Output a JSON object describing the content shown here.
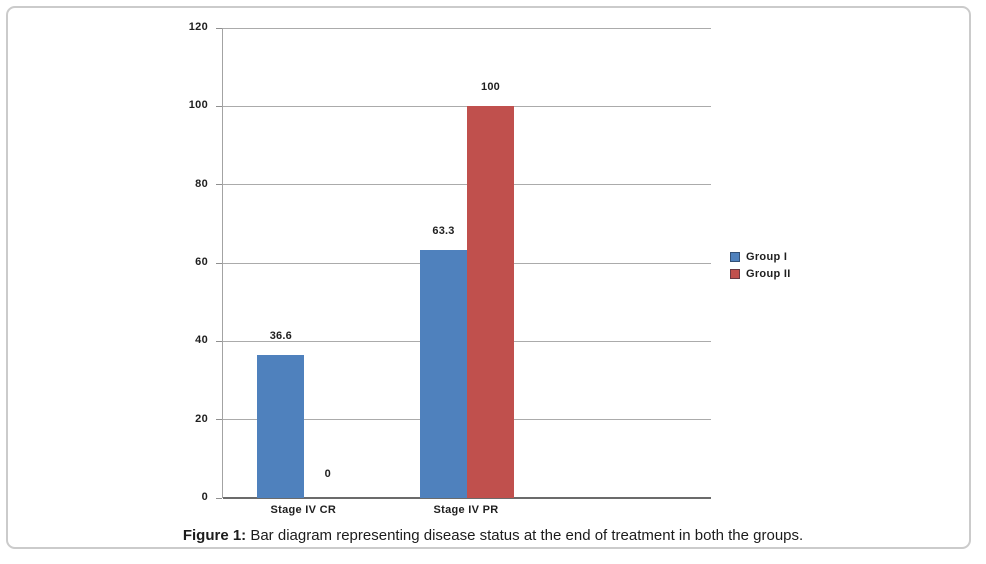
{
  "figure": {
    "caption_prefix": "Figure 1:",
    "caption_text": " Bar diagram representing disease status at the end of treatment in both the groups."
  },
  "chart_data": {
    "type": "bar",
    "title": "",
    "xlabel": "",
    "ylabel": "",
    "categories": [
      "Stage IV CR",
      "Stage IV PR"
    ],
    "series": [
      {
        "name": "Group I",
        "color": "#4F81BD",
        "values": [
          36.6,
          63.3
        ],
        "labels": [
          "36.6",
          "63.3"
        ]
      },
      {
        "name": "Group II",
        "color": "#C0504D",
        "values": [
          0,
          100
        ],
        "labels": [
          "0",
          "100"
        ]
      }
    ],
    "ylim": [
      0,
      120
    ],
    "yticks": [
      0,
      20,
      40,
      60,
      80,
      100,
      120
    ],
    "grid": true,
    "data_labels": true,
    "legend_position": "right"
  },
  "colors": {
    "gridline": "#ababab",
    "axis": "#6b6b6b",
    "text": "#1f1f1f",
    "frame_border": "#cbcbcb"
  }
}
